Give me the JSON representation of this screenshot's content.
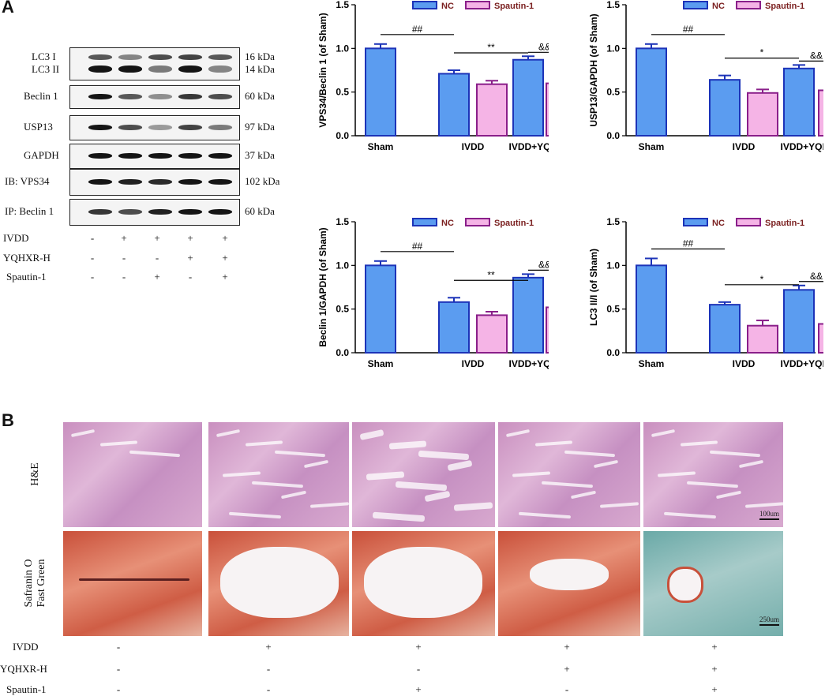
{
  "panels": {
    "a": "A",
    "b": "B"
  },
  "western_blot": {
    "rows": [
      {
        "label": "LC3  I\nLC3 II",
        "kda": "16 kDa\n14 kDa"
      },
      {
        "label": "Beclin 1",
        "kda": "60 kDa"
      },
      {
        "label": "USP13",
        "kda": "97 kDa"
      },
      {
        "label": "GAPDH",
        "kda": "37 kDa"
      },
      {
        "label": "IB:  VPS34",
        "kda": "102 kDa"
      },
      {
        "label": "IP:  Beclin 1",
        "kda": "60 kDa"
      }
    ],
    "conditions": [
      {
        "name": "IVDD",
        "signs": [
          "-",
          "+",
          "+",
          "+",
          "+"
        ]
      },
      {
        "name": "YQHXR-H",
        "signs": [
          "-",
          "-",
          "-",
          "+",
          "+"
        ]
      },
      {
        "name": "Spautin-1",
        "signs": [
          "-",
          "-",
          "+",
          "-",
          "+"
        ]
      }
    ]
  },
  "chart_data": [
    {
      "type": "bar",
      "ylabel": "VPS34/Beclin 1 (of Sham)",
      "ylim": [
        0,
        1.5
      ],
      "yticks": [
        "0.0",
        "0.5",
        "1.0",
        "1.5"
      ],
      "categories": [
        "Sham",
        "IVDD",
        "IVDD+YQHXR-H"
      ],
      "legend": [
        "NC",
        "Spautin-1"
      ],
      "series": [
        {
          "name": "NC",
          "values": [
            1.0,
            0.71,
            0.87
          ],
          "errors": [
            0.05,
            0.04,
            0.04
          ]
        },
        {
          "name": "Spautin-1",
          "values": [
            null,
            0.59,
            0.6
          ],
          "errors": [
            null,
            0.04,
            0.04
          ]
        }
      ],
      "annotations": [
        {
          "text": "##",
          "between": [
            "Sham",
            "IVDD"
          ]
        },
        {
          "text": "**",
          "between": [
            "IVDD",
            "IVDD+YQHXR-H"
          ]
        },
        {
          "text": "&&",
          "between": [
            "IVDD+YQHXR-H NC",
            "IVDD+YQHXR-H Spautin-1"
          ]
        }
      ]
    },
    {
      "type": "bar",
      "ylabel": "USP13/GAPDH (of Sham)",
      "ylim": [
        0,
        1.5
      ],
      "yticks": [
        "0.0",
        "0.5",
        "1.0",
        "1.5"
      ],
      "categories": [
        "Sham",
        "IVDD",
        "IVDD+YQHXR-H"
      ],
      "legend": [
        "NC",
        "Spautin-1"
      ],
      "series": [
        {
          "name": "NC",
          "values": [
            1.0,
            0.64,
            0.77
          ],
          "errors": [
            0.05,
            0.05,
            0.04
          ]
        },
        {
          "name": "Spautin-1",
          "values": [
            null,
            0.49,
            0.52
          ],
          "errors": [
            null,
            0.04,
            0.05
          ]
        }
      ],
      "annotations": [
        {
          "text": "##",
          "between": [
            "Sham",
            "IVDD"
          ]
        },
        {
          "text": "*",
          "between": [
            "IVDD",
            "IVDD+YQHXR-H"
          ]
        },
        {
          "text": "&&",
          "between": [
            "IVDD+YQHXR-H NC",
            "IVDD+YQHXR-H Spautin-1"
          ]
        }
      ]
    },
    {
      "type": "bar",
      "ylabel": "Beclin 1/GAPDH (of Sham)",
      "ylim": [
        0,
        1.5
      ],
      "yticks": [
        "0.0",
        "0.5",
        "1.0",
        "1.5"
      ],
      "categories": [
        "Sham",
        "IVDD",
        "IVDD+YQHXR-H"
      ],
      "legend": [
        "NC",
        "Spautin-1"
      ],
      "series": [
        {
          "name": "NC",
          "values": [
            1.0,
            0.58,
            0.86
          ],
          "errors": [
            0.05,
            0.05,
            0.04
          ]
        },
        {
          "name": "Spautin-1",
          "values": [
            null,
            0.43,
            0.52
          ],
          "errors": [
            null,
            0.04,
            0.04
          ]
        }
      ],
      "annotations": [
        {
          "text": "##",
          "between": [
            "Sham",
            "IVDD"
          ]
        },
        {
          "text": "**",
          "between": [
            "IVDD",
            "IVDD+YQHXR-H"
          ]
        },
        {
          "text": "&&",
          "between": [
            "IVDD+YQHXR-H NC",
            "IVDD+YQHXR-H Spautin-1"
          ]
        }
      ]
    },
    {
      "type": "bar",
      "ylabel": "LC3 II/I (of Sham)",
      "ylim": [
        0,
        1.5
      ],
      "yticks": [
        "0.0",
        "0.5",
        "1.0",
        "1.5"
      ],
      "categories": [
        "Sham",
        "IVDD",
        "IVDD+YQHXR-H"
      ],
      "legend": [
        "NC",
        "Spautin-1"
      ],
      "series": [
        {
          "name": "NC",
          "values": [
            1.0,
            0.55,
            0.72
          ],
          "errors": [
            0.08,
            0.03,
            0.05
          ]
        },
        {
          "name": "Spautin-1",
          "values": [
            null,
            0.31,
            0.33
          ],
          "errors": [
            null,
            0.06,
            0.05
          ]
        }
      ],
      "annotations": [
        {
          "text": "##",
          "between": [
            "Sham",
            "IVDD"
          ]
        },
        {
          "text": "*",
          "between": [
            "IVDD",
            "IVDD+YQHXR-H"
          ]
        },
        {
          "text": "&&",
          "between": [
            "IVDD+YQHXR-H NC",
            "IVDD+YQHXR-H Spautin-1"
          ]
        }
      ]
    }
  ],
  "colors": {
    "nc_fill": "#5b9cf0",
    "nc_stroke": "#1c33b8",
    "sp_fill": "#f5b4e6",
    "sp_stroke": "#8a1f8a",
    "legend_text": "#7a1f1f"
  },
  "histology": {
    "rows": [
      {
        "label": "H&E",
        "scale": "100um"
      },
      {
        "label": "Safranin O\nFast Green",
        "scale": "250um"
      }
    ],
    "conditions": [
      {
        "name": "IVDD",
        "signs": [
          "-",
          "+",
          "+",
          "+",
          "+"
        ]
      },
      {
        "name": "YQHXR-H",
        "signs": [
          "-",
          "-",
          "-",
          "+",
          "+"
        ]
      },
      {
        "name": "Spautin-1",
        "signs": [
          "-",
          "-",
          "+",
          "-",
          "+"
        ]
      }
    ]
  }
}
